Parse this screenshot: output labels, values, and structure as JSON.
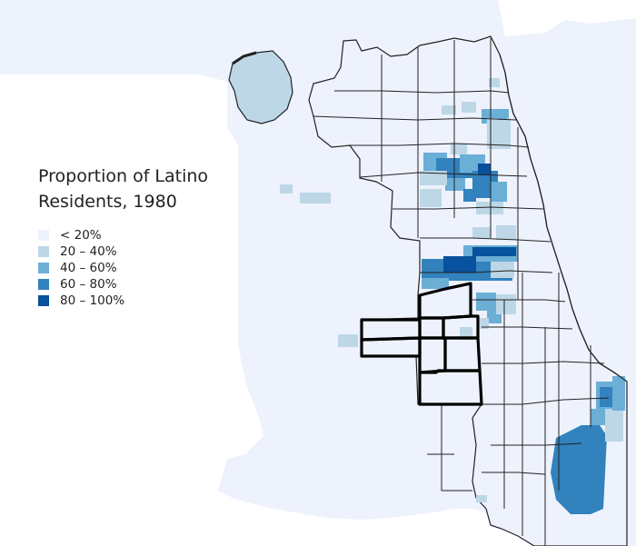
{
  "legend": {
    "title_line1": "Proportion of Latino",
    "title_line2": "Residents, 1980",
    "bins": [
      {
        "label": "< 20%",
        "color": "#eef2fd"
      },
      {
        "label": "20 – 40%",
        "color": "#bdd7e7"
      },
      {
        "label": "40 – 60%",
        "color": "#6baed6"
      },
      {
        "label": "60 – 80%",
        "color": "#3182bd"
      },
      {
        "label": "80 – 100%",
        "color": "#08519c"
      }
    ]
  },
  "colors": {
    "background": "#ffffff",
    "region_fill": "#eef2fd",
    "tract_line": "#222222",
    "highlight_outline": "#000000"
  }
}
